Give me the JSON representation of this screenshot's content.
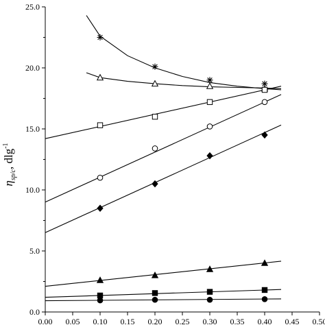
{
  "chart_data": {
    "type": "scatter",
    "title": "",
    "xlabel": "",
    "ylabel": {
      "symbol": "η",
      "subscript": "sp/c",
      "rest": ", dlg",
      "superscript": "-1"
    },
    "xlim": [
      0.0,
      0.5
    ],
    "ylim": [
      0.0,
      25.0
    ],
    "x_ticks": [
      "0.00",
      "0.05",
      "0.10",
      "0.15",
      "0.20",
      "0.25",
      "0.30",
      "0.35",
      "0.40",
      "0.45",
      "0.50"
    ],
    "y_ticks": [
      "0.0",
      "5.0",
      "10.0",
      "15.0",
      "20.0",
      "25.0"
    ],
    "series": [
      {
        "marker": "asterisk",
        "x": [
          0.1,
          0.2,
          0.3,
          0.4
        ],
        "y": [
          22.5,
          20.1,
          19.0,
          18.7
        ],
        "fit": "curve",
        "fit_points": [
          [
            0.075,
            24.3
          ],
          [
            0.1,
            22.6
          ],
          [
            0.15,
            21.0
          ],
          [
            0.2,
            20.0
          ],
          [
            0.25,
            19.3
          ],
          [
            0.3,
            18.8
          ],
          [
            0.35,
            18.5
          ],
          [
            0.4,
            18.3
          ],
          [
            0.43,
            18.2
          ]
        ]
      },
      {
        "marker": "open-triangle",
        "x": [
          0.1,
          0.2,
          0.3,
          0.4
        ],
        "y": [
          19.2,
          18.7,
          18.5,
          18.3
        ],
        "fit": "curve",
        "fit_points": [
          [
            0.075,
            19.6
          ],
          [
            0.1,
            19.2
          ],
          [
            0.15,
            18.9
          ],
          [
            0.2,
            18.7
          ],
          [
            0.25,
            18.55
          ],
          [
            0.3,
            18.45
          ],
          [
            0.35,
            18.4
          ],
          [
            0.4,
            18.35
          ],
          [
            0.43,
            18.3
          ]
        ]
      },
      {
        "marker": "open-square",
        "x": [
          0.1,
          0.2,
          0.3,
          0.4
        ],
        "y": [
          15.3,
          16.0,
          17.2,
          18.2
        ],
        "fit": "line",
        "fit_range": [
          0.0,
          0.43
        ],
        "intercept": 14.2,
        "slope": 10.0
      },
      {
        "marker": "open-circle",
        "x": [
          0.1,
          0.2,
          0.3,
          0.4
        ],
        "y": [
          11.0,
          13.4,
          15.2,
          17.2
        ],
        "fit": "line",
        "fit_range": [
          0.0,
          0.43
        ],
        "intercept": 9.0,
        "slope": 20.5
      },
      {
        "marker": "filled-diamond",
        "x": [
          0.1,
          0.2,
          0.3,
          0.4
        ],
        "y": [
          8.5,
          10.5,
          12.8,
          14.5
        ],
        "fit": "line",
        "fit_range": [
          0.0,
          0.43
        ],
        "intercept": 6.5,
        "slope": 20.5
      },
      {
        "marker": "filled-triangle",
        "x": [
          0.1,
          0.2,
          0.3,
          0.4
        ],
        "y": [
          2.6,
          3.0,
          3.5,
          4.0
        ],
        "fit": "line",
        "fit_range": [
          0.0,
          0.43
        ],
        "intercept": 2.1,
        "slope": 4.8
      },
      {
        "marker": "filled-square",
        "x": [
          0.1,
          0.2,
          0.3,
          0.4
        ],
        "y": [
          1.35,
          1.55,
          1.65,
          1.8
        ],
        "fit": "line",
        "fit_range": [
          0.0,
          0.43
        ],
        "intercept": 1.2,
        "slope": 1.5
      },
      {
        "marker": "filled-circle",
        "x": [
          0.1,
          0.2,
          0.3,
          0.4
        ],
        "y": [
          0.95,
          1.0,
          1.0,
          1.05
        ],
        "fit": "line",
        "fit_range": [
          0.0,
          0.43
        ],
        "intercept": 0.92,
        "slope": 0.35
      }
    ],
    "grid": false,
    "legend": "none"
  }
}
